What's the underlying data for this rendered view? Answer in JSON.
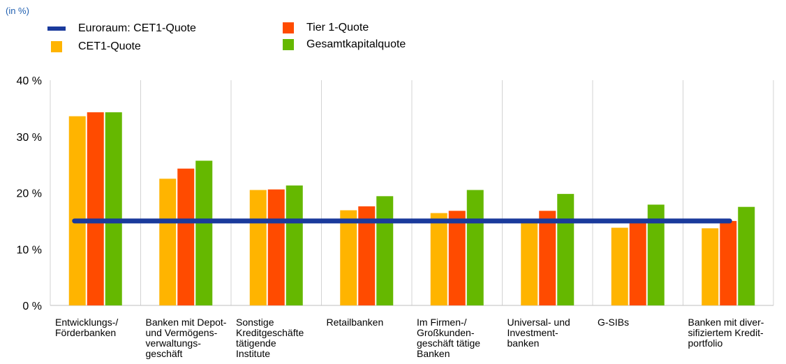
{
  "unit_note": "(in %)",
  "legend": {
    "items": [
      {
        "label": "Euroraum: CET1-Quote",
        "color": "#1a3a9c",
        "kind": "line"
      },
      {
        "label": "CET1-Quote",
        "color": "#ffb400",
        "kind": "box"
      },
      {
        "label": "Tier 1-Quote",
        "color": "#ff4b00",
        "kind": "box"
      },
      {
        "label": "Gesamtkapitalquote",
        "color": "#65b800",
        "kind": "box"
      }
    ]
  },
  "chart_data": {
    "type": "bar",
    "categories": [
      "Entwicklungs-/\nFörderbanken",
      "Banken mit Depot-\nund Vermögens-\nverwaltungs-\ngeschäft",
      "Sonstige\nKreditgeschäfte\ntätigende\nInstitute",
      "Retailbanken",
      "Im Firmen-/\nGroßkunden-\ngeschäft tätige\nBanken",
      "Universal- und\nInvestment-\nbanken",
      "G-SIBs",
      "Banken mit diver-\nsifiziertem Kredit-\nportfolio"
    ],
    "series": [
      {
        "name": "CET1-Quote",
        "color": "#ffb400",
        "values": [
          33.6,
          22.5,
          20.5,
          16.9,
          16.4,
          15.0,
          13.8,
          13.7
        ]
      },
      {
        "name": "Tier 1-Quote",
        "color": "#ff4b00",
        "values": [
          34.3,
          24.3,
          20.6,
          17.6,
          16.8,
          16.8,
          15.0,
          15.0
        ]
      },
      {
        "name": "Gesamtkapitalquote",
        "color": "#65b800",
        "values": [
          34.3,
          25.7,
          21.3,
          19.4,
          20.5,
          19.8,
          17.9,
          17.5
        ]
      }
    ],
    "reference_line": {
      "name": "Euroraum: CET1-Quote",
      "value": 15.0,
      "color": "#1a3a9c"
    },
    "ylim": [
      0,
      40
    ],
    "yticks": [
      0,
      10,
      20,
      30,
      40
    ],
    "ytick_labels": [
      "0 %",
      "10 %",
      "20 %",
      "30 %",
      "40 %"
    ],
    "grid": "vertical separators between categories"
  }
}
